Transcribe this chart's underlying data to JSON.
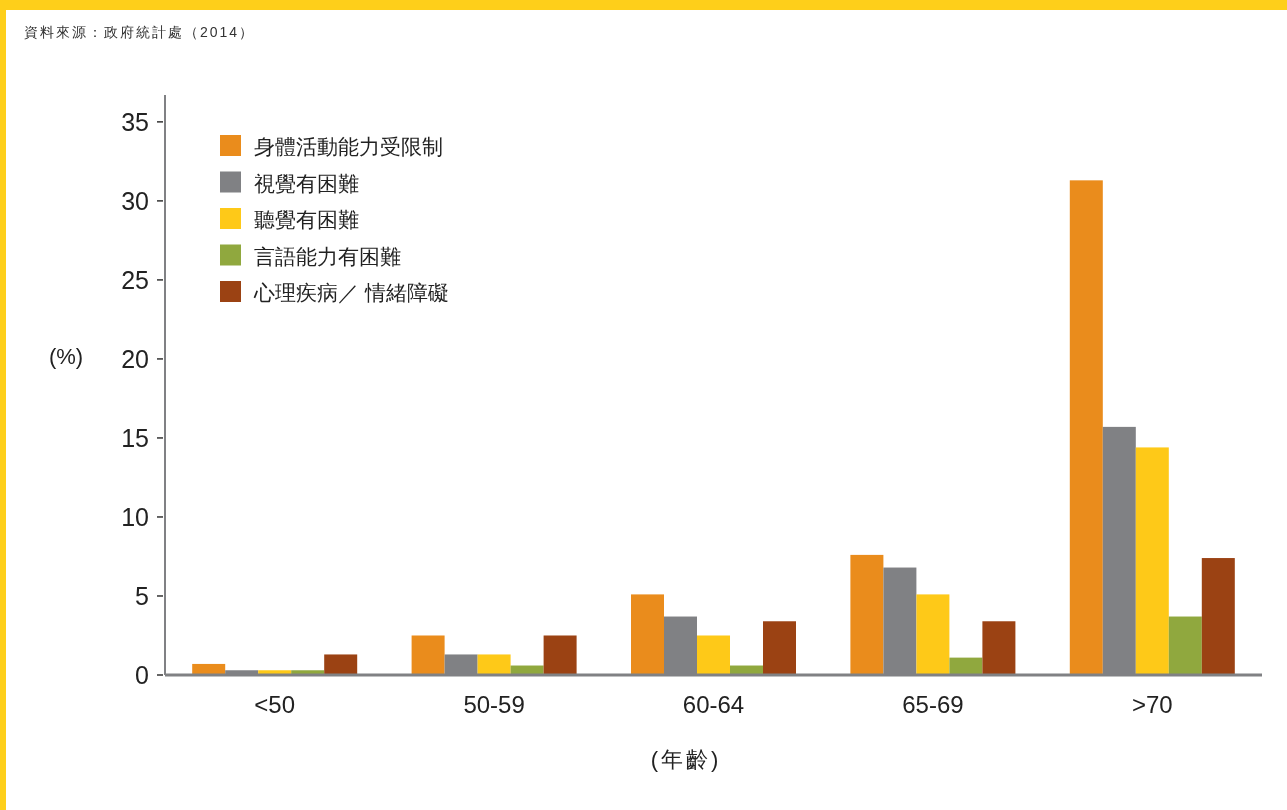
{
  "chart_data": {
    "type": "bar",
    "categories": [
      "<50",
      "50-59",
      "60-64",
      "65-69",
      ">70"
    ],
    "series": [
      {
        "name": "身體活動能力受限制",
        "color": "#ea8c1c",
        "values": [
          0.7,
          2.5,
          5.1,
          7.6,
          31.3
        ]
      },
      {
        "name": "視覺有困難",
        "color": "#808184",
        "values": [
          0.3,
          1.3,
          3.7,
          6.8,
          15.7
        ]
      },
      {
        "name": "聽覺有困難",
        "color": "#fec918",
        "values": [
          0.3,
          1.3,
          2.5,
          5.1,
          14.4
        ]
      },
      {
        "name": "言語能力有困難",
        "color": "#90a83e",
        "values": [
          0.3,
          0.6,
          0.6,
          1.1,
          3.7
        ]
      },
      {
        "name": "心理疾病／ 情緒障礙",
        "color": "#9b4213",
        "values": [
          1.3,
          2.5,
          3.4,
          3.4,
          7.4
        ]
      }
    ],
    "ylabel": "(%)",
    "xlabel": "(年齡)",
    "ylim": [
      0,
      36.7
    ],
    "yticks": [
      0,
      5,
      10,
      15,
      20,
      25,
      30,
      35
    ],
    "legend": "top left",
    "grid": false,
    "annotations": [
      "資料來源：政府統計處（2014）"
    ]
  }
}
